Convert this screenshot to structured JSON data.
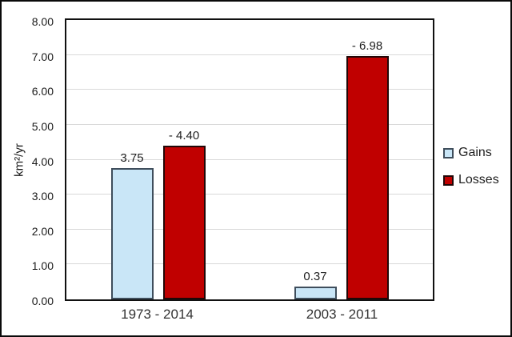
{
  "figure": {
    "background": "#ffffff",
    "outer_border_color": "#0a0a0a",
    "plot_border_color": "#111111",
    "gridline_color": "#d9d9d9"
  },
  "chart_data": {
    "type": "bar",
    "title": "",
    "xlabel": "",
    "ylabel": "km²/yr",
    "categories": [
      "1973 - 2014",
      "2003 - 2011"
    ],
    "series": [
      {
        "name": "Gains",
        "values": [
          3.75,
          0.37
        ],
        "data_labels": [
          "3.75",
          "0.37"
        ],
        "fill": "#c9e6f7",
        "border": "#3f4e5c"
      },
      {
        "name": "Losses",
        "values": [
          4.4,
          6.98
        ],
        "data_labels": [
          "- 4.40",
          "- 6.98"
        ],
        "fill": "#c00000",
        "border": "#220707"
      }
    ],
    "ylim": [
      0,
      8
    ],
    "ytick_step": 1,
    "ytick_labels": [
      "0.00",
      "1.00",
      "2.00",
      "3.00",
      "4.00",
      "5.00",
      "6.00",
      "7.00",
      "8.00"
    ],
    "grid": true,
    "legend_position": "right-outside"
  }
}
